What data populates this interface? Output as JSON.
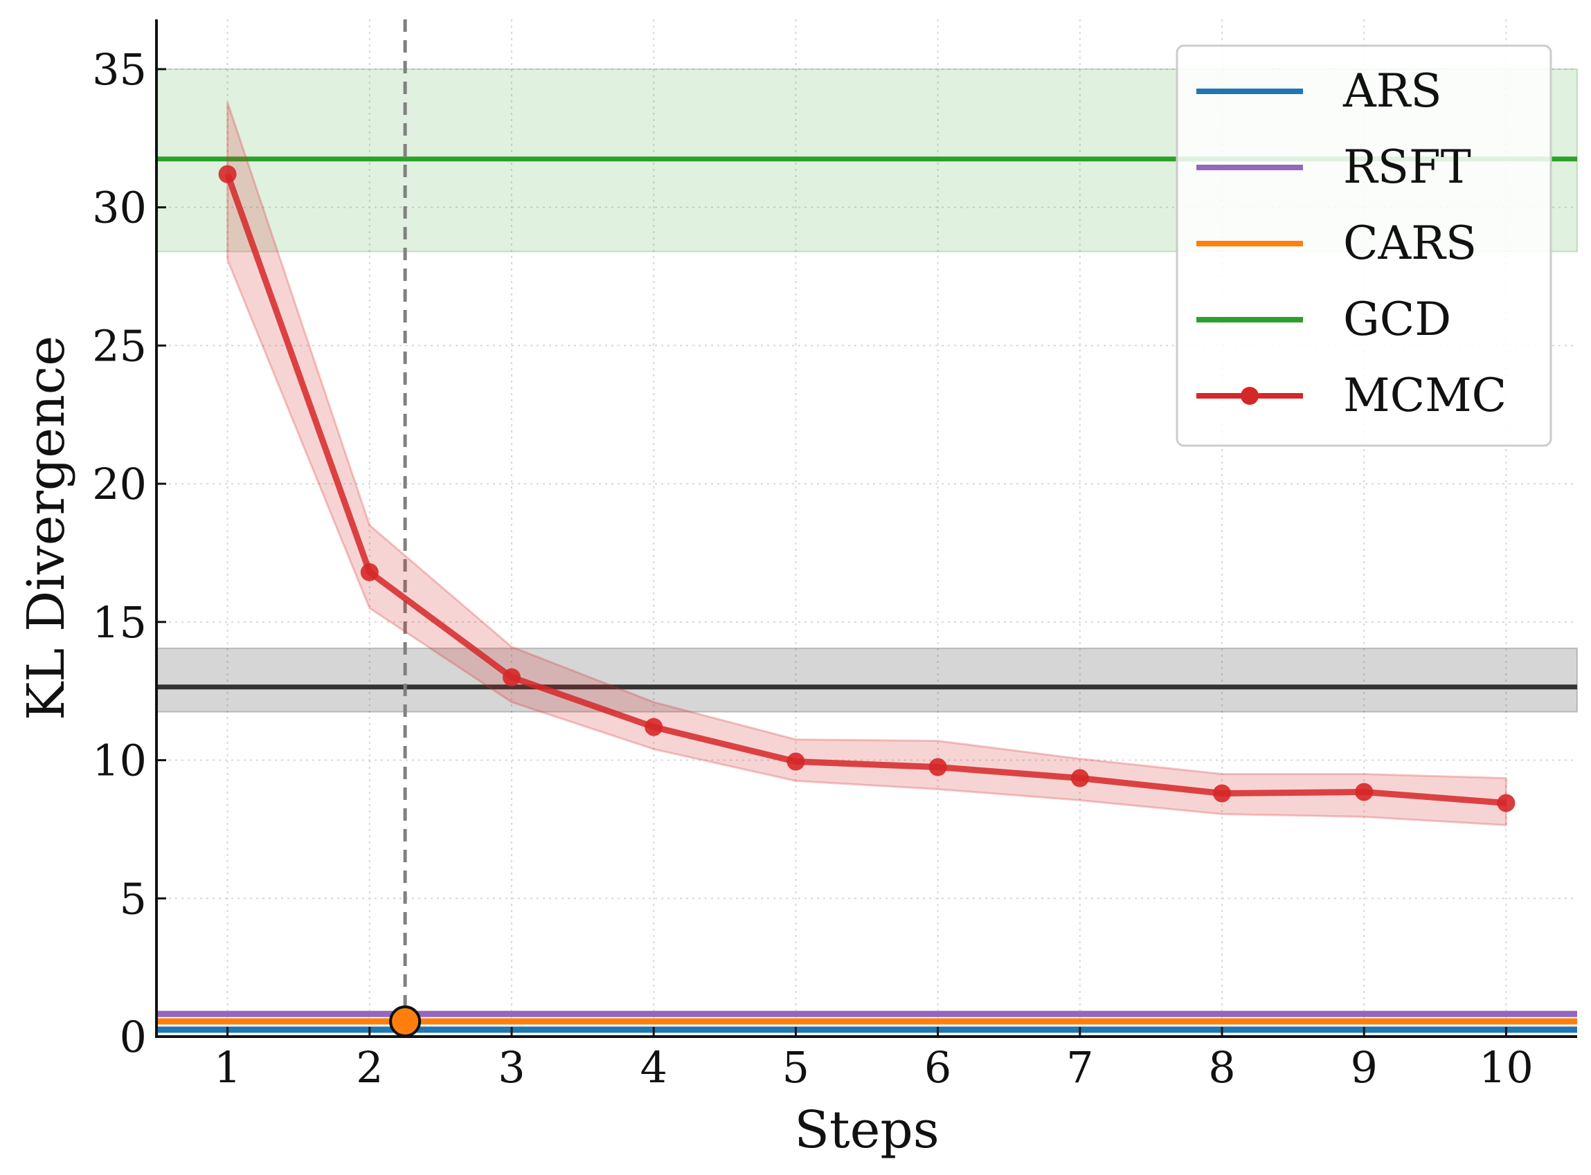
{
  "chart_data": {
    "type": "line",
    "title": "",
    "xlabel": "Steps",
    "ylabel": "KL Divergence",
    "xlim": [
      0.5,
      10.5
    ],
    "ylim": [
      0,
      36.8
    ],
    "x_ticks": [
      1,
      2,
      3,
      4,
      5,
      6,
      7,
      8,
      9,
      10
    ],
    "y_ticks": [
      0,
      5,
      10,
      15,
      20,
      25,
      30,
      35
    ],
    "grid": true,
    "legend_position": "top-right",
    "series": [
      {
        "name": "MCMC",
        "color": "#d62728",
        "x": [
          1,
          2,
          3,
          4,
          5,
          6,
          7,
          8,
          9,
          10
        ],
        "y": [
          31.2,
          16.8,
          13.0,
          11.2,
          9.95,
          9.75,
          9.35,
          8.8,
          8.85,
          8.45
        ],
        "lower": [
          28.1,
          15.5,
          12.1,
          10.4,
          9.25,
          8.95,
          8.55,
          8.05,
          7.95,
          7.65
        ],
        "upper": [
          33.8,
          18.5,
          14.1,
          12.1,
          10.75,
          10.7,
          10.05,
          9.5,
          9.5,
          9.35
        ]
      }
    ],
    "hlines": [
      {
        "name": "GCD",
        "color": "#2ca02c",
        "y": 31.75,
        "band": [
          28.4,
          35.0
        ]
      },
      {
        "name": "",
        "color": "#333333",
        "y": 12.65,
        "band": [
          11.75,
          14.05
        ]
      },
      {
        "name": "RSFT",
        "color": "#9467bd",
        "y": 0.82,
        "band": null
      },
      {
        "name": "CARS",
        "color": "#ff7f0e",
        "y": 0.55,
        "band": null
      },
      {
        "name": "ARS",
        "color": "#1f77b4",
        "y": 0.25,
        "band": null
      }
    ],
    "vline": {
      "x": 2.25,
      "color": "#808080",
      "style": "dashed"
    },
    "marker": {
      "x": 2.25,
      "y": 0.55,
      "color": "#ff7f0e"
    },
    "legend": [
      {
        "label": "ARS",
        "color": "#1f77b4",
        "marker": false
      },
      {
        "label": "RSFT",
        "color": "#9467bd",
        "marker": false
      },
      {
        "label": "CARS",
        "color": "#ff7f0e",
        "marker": false
      },
      {
        "label": "GCD",
        "color": "#2ca02c",
        "marker": false
      },
      {
        "label": "MCMC",
        "color": "#d62728",
        "marker": true
      }
    ]
  }
}
